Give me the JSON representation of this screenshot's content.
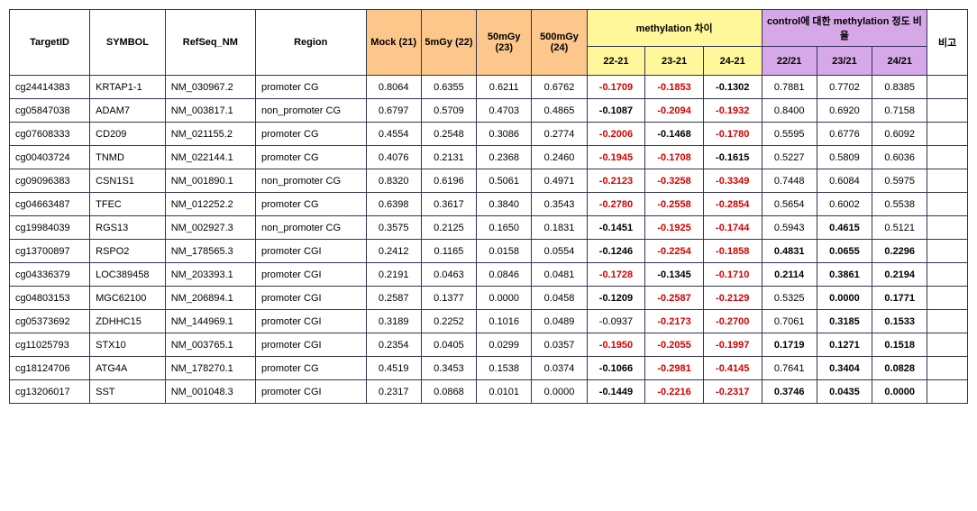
{
  "headers": {
    "targetId": "TargetID",
    "symbol": "SYMBOL",
    "refseq": "RefSeq_NM",
    "region": "Region",
    "mock": "Mock (21)",
    "d5": "5mGy (22)",
    "d50": "50mGy (23)",
    "d500": "500mGy (24)",
    "methDiff": "methylation 차이",
    "ratio": "control에 대한 methylation 정도 비율",
    "note": "비고",
    "c2221": "22-21",
    "c2321": "23-21",
    "c2421": "24-21",
    "r2221": "22/21",
    "r2321": "23/21",
    "r2421": "24/21"
  },
  "style": {
    "doseBg": "#fdc68a",
    "methBg": "#fff799",
    "ratioBg": "#d6a8e8",
    "negColor": "#d40000",
    "borderColor": "#333355"
  },
  "rows": [
    {
      "targetId": "cg24414383",
      "symbol": "KRTAP1-1",
      "refseq": "NM_030967.2",
      "region": "promoter CG",
      "mock": "0.8064",
      "d5": "0.6355",
      "d50": "0.6211",
      "d500": "0.6762",
      "diff2221": {
        "v": "-0.1709",
        "neg": true,
        "bold": true
      },
      "diff2321": {
        "v": "-0.1853",
        "neg": true,
        "bold": true
      },
      "diff2421": {
        "v": "-0.1302",
        "neg": false,
        "bold": true
      },
      "r2221": {
        "v": "0.7881",
        "bold": false
      },
      "r2321": {
        "v": "0.7702",
        "bold": false
      },
      "r2421": {
        "v": "0.8385",
        "bold": false
      }
    },
    {
      "targetId": "cg05847038",
      "symbol": "ADAM7",
      "refseq": "NM_003817.1",
      "region": "non_promoter CG",
      "mock": "0.6797",
      "d5": "0.5709",
      "d50": "0.4703",
      "d500": "0.4865",
      "diff2221": {
        "v": "-0.1087",
        "neg": false,
        "bold": true
      },
      "diff2321": {
        "v": "-0.2094",
        "neg": true,
        "bold": true
      },
      "diff2421": {
        "v": "-0.1932",
        "neg": true,
        "bold": true
      },
      "r2221": {
        "v": "0.8400",
        "bold": false
      },
      "r2321": {
        "v": "0.6920",
        "bold": false
      },
      "r2421": {
        "v": "0.7158",
        "bold": false
      }
    },
    {
      "targetId": "cg07608333",
      "symbol": "CD209",
      "refseq": "NM_021155.2",
      "region": "promoter CG",
      "mock": "0.4554",
      "d5": "0.2548",
      "d50": "0.3086",
      "d500": "0.2774",
      "diff2221": {
        "v": "-0.2006",
        "neg": true,
        "bold": true
      },
      "diff2321": {
        "v": "-0.1468",
        "neg": false,
        "bold": true
      },
      "diff2421": {
        "v": "-0.1780",
        "neg": true,
        "bold": true
      },
      "r2221": {
        "v": "0.5595",
        "bold": false
      },
      "r2321": {
        "v": "0.6776",
        "bold": false
      },
      "r2421": {
        "v": "0.6092",
        "bold": false
      }
    },
    {
      "targetId": "cg00403724",
      "symbol": "TNMD",
      "refseq": "NM_022144.1",
      "region": "promoter CG",
      "mock": "0.4076",
      "d5": "0.2131",
      "d50": "0.2368",
      "d500": "0.2460",
      "diff2221": {
        "v": "-0.1945",
        "neg": true,
        "bold": true
      },
      "diff2321": {
        "v": "-0.1708",
        "neg": true,
        "bold": true
      },
      "diff2421": {
        "v": "-0.1615",
        "neg": false,
        "bold": true
      },
      "r2221": {
        "v": "0.5227",
        "bold": false
      },
      "r2321": {
        "v": "0.5809",
        "bold": false
      },
      "r2421": {
        "v": "0.6036",
        "bold": false
      }
    },
    {
      "targetId": "cg09096383",
      "symbol": "CSN1S1",
      "refseq": "NM_001890.1",
      "region": "non_promoter CG",
      "mock": "0.8320",
      "d5": "0.6196",
      "d50": "0.5061",
      "d500": "0.4971",
      "diff2221": {
        "v": "-0.2123",
        "neg": true,
        "bold": true
      },
      "diff2321": {
        "v": "-0.3258",
        "neg": true,
        "bold": true
      },
      "diff2421": {
        "v": "-0.3349",
        "neg": true,
        "bold": true
      },
      "r2221": {
        "v": "0.7448",
        "bold": false
      },
      "r2321": {
        "v": "0.6084",
        "bold": false
      },
      "r2421": {
        "v": "0.5975",
        "bold": false
      }
    },
    {
      "targetId": "cg04663487",
      "symbol": "TFEC",
      "refseq": "NM_012252.2",
      "region": "promoter CG",
      "mock": "0.6398",
      "d5": "0.3617",
      "d50": "0.3840",
      "d500": "0.3543",
      "diff2221": {
        "v": "-0.2780",
        "neg": true,
        "bold": true
      },
      "diff2321": {
        "v": "-0.2558",
        "neg": true,
        "bold": true
      },
      "diff2421": {
        "v": "-0.2854",
        "neg": true,
        "bold": true
      },
      "r2221": {
        "v": "0.5654",
        "bold": false
      },
      "r2321": {
        "v": "0.6002",
        "bold": false
      },
      "r2421": {
        "v": "0.5538",
        "bold": false
      }
    },
    {
      "targetId": "cg19984039",
      "symbol": "RGS13",
      "refseq": "NM_002927.3",
      "region": "non_promoter CG",
      "mock": "0.3575",
      "d5": "0.2125",
      "d50": "0.1650",
      "d500": "0.1831",
      "diff2221": {
        "v": "-0.1451",
        "neg": false,
        "bold": true
      },
      "diff2321": {
        "v": "-0.1925",
        "neg": true,
        "bold": true
      },
      "diff2421": {
        "v": "-0.1744",
        "neg": true,
        "bold": true
      },
      "r2221": {
        "v": "0.5943",
        "bold": false
      },
      "r2321": {
        "v": "0.4615",
        "bold": true
      },
      "r2421": {
        "v": "0.5121",
        "bold": false
      }
    },
    {
      "targetId": "cg13700897",
      "symbol": "RSPO2",
      "refseq": "NM_178565.3",
      "region": "promoter CGI",
      "mock": "0.2412",
      "d5": "0.1165",
      "d50": "0.0158",
      "d500": "0.0554",
      "diff2221": {
        "v": "-0.1246",
        "neg": false,
        "bold": true
      },
      "diff2321": {
        "v": "-0.2254",
        "neg": true,
        "bold": true
      },
      "diff2421": {
        "v": "-0.1858",
        "neg": true,
        "bold": true
      },
      "r2221": {
        "v": "0.4831",
        "bold": true
      },
      "r2321": {
        "v": "0.0655",
        "bold": true
      },
      "r2421": {
        "v": "0.2296",
        "bold": true
      }
    },
    {
      "targetId": "cg04336379",
      "symbol": "LOC389458",
      "refseq": "NM_203393.1",
      "region": "promoter CGI",
      "mock": "0.2191",
      "d5": "0.0463",
      "d50": "0.0846",
      "d500": "0.0481",
      "diff2221": {
        "v": "-0.1728",
        "neg": true,
        "bold": true
      },
      "diff2321": {
        "v": "-0.1345",
        "neg": false,
        "bold": true
      },
      "diff2421": {
        "v": "-0.1710",
        "neg": true,
        "bold": true
      },
      "r2221": {
        "v": "0.2114",
        "bold": true
      },
      "r2321": {
        "v": "0.3861",
        "bold": true
      },
      "r2421": {
        "v": "0.2194",
        "bold": true
      }
    },
    {
      "targetId": "cg04803153",
      "symbol": "MGC62100",
      "refseq": "NM_206894.1",
      "region": "promoter CGI",
      "mock": "0.2587",
      "d5": "0.1377",
      "d50": "0.0000",
      "d500": "0.0458",
      "diff2221": {
        "v": "-0.1209",
        "neg": false,
        "bold": true
      },
      "diff2321": {
        "v": "-0.2587",
        "neg": true,
        "bold": true
      },
      "diff2421": {
        "v": "-0.2129",
        "neg": true,
        "bold": true
      },
      "r2221": {
        "v": "0.5325",
        "bold": false
      },
      "r2321": {
        "v": "0.0000",
        "bold": true
      },
      "r2421": {
        "v": "0.1771",
        "bold": true
      }
    },
    {
      "targetId": "cg05373692",
      "symbol": "ZDHHC15",
      "refseq": "NM_144969.1",
      "region": "promoter CGI",
      "mock": "0.3189",
      "d5": "0.2252",
      "d50": "0.1016",
      "d500": "0.0489",
      "diff2221": {
        "v": "-0.0937",
        "neg": false,
        "bold": false
      },
      "diff2321": {
        "v": "-0.2173",
        "neg": true,
        "bold": true
      },
      "diff2421": {
        "v": "-0.2700",
        "neg": true,
        "bold": true
      },
      "r2221": {
        "v": "0.7061",
        "bold": false
      },
      "r2321": {
        "v": "0.3185",
        "bold": true
      },
      "r2421": {
        "v": "0.1533",
        "bold": true
      }
    },
    {
      "targetId": "cg11025793",
      "symbol": "STX10",
      "refseq": "NM_003765.1",
      "region": "promoter CGI",
      "mock": "0.2354",
      "d5": "0.0405",
      "d50": "0.0299",
      "d500": "0.0357",
      "diff2221": {
        "v": "-0.1950",
        "neg": true,
        "bold": true
      },
      "diff2321": {
        "v": "-0.2055",
        "neg": true,
        "bold": true
      },
      "diff2421": {
        "v": "-0.1997",
        "neg": true,
        "bold": true
      },
      "r2221": {
        "v": "0.1719",
        "bold": true
      },
      "r2321": {
        "v": "0.1271",
        "bold": true
      },
      "r2421": {
        "v": "0.1518",
        "bold": true
      }
    },
    {
      "targetId": "cg18124706",
      "symbol": "ATG4A",
      "refseq": "NM_178270.1",
      "region": "promoter CG",
      "mock": "0.4519",
      "d5": "0.3453",
      "d50": "0.1538",
      "d500": "0.0374",
      "diff2221": {
        "v": "-0.1066",
        "neg": false,
        "bold": true
      },
      "diff2321": {
        "v": "-0.2981",
        "neg": true,
        "bold": true
      },
      "diff2421": {
        "v": "-0.4145",
        "neg": true,
        "bold": true
      },
      "r2221": {
        "v": "0.7641",
        "bold": false
      },
      "r2321": {
        "v": "0.3404",
        "bold": true
      },
      "r2421": {
        "v": "0.0828",
        "bold": true
      }
    },
    {
      "targetId": "cg13206017",
      "symbol": "SST",
      "refseq": "NM_001048.3",
      "region": "promoter CGI",
      "mock": "0.2317",
      "d5": "0.0868",
      "d50": "0.0101",
      "d500": "0.0000",
      "diff2221": {
        "v": "-0.1449",
        "neg": false,
        "bold": true
      },
      "diff2321": {
        "v": "-0.2216",
        "neg": true,
        "bold": true
      },
      "diff2421": {
        "v": "-0.2317",
        "neg": true,
        "bold": true
      },
      "r2221": {
        "v": "0.3746",
        "bold": true
      },
      "r2321": {
        "v": "0.0435",
        "bold": true
      },
      "r2421": {
        "v": "0.0000",
        "bold": true
      }
    }
  ]
}
